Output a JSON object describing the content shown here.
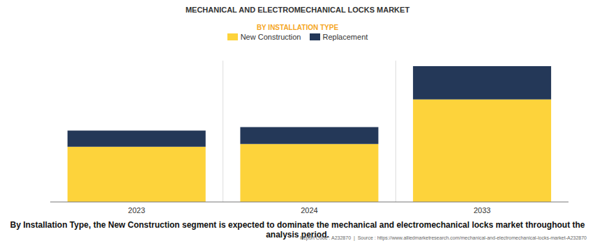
{
  "chart_data": {
    "type": "bar",
    "title": "MECHANICAL AND ELECTROMECHANICAL LOCKS MARKET",
    "subtitle": "BY INSTALLATION TYPE",
    "categories": [
      "2023",
      "2024",
      "2033"
    ],
    "series": [
      {
        "name": "New Construction",
        "color": "#fdd33b",
        "values": [
          7.8,
          8.2,
          14.5
        ]
      },
      {
        "name": "Replacement",
        "color": "#243858",
        "values": [
          2.3,
          2.4,
          4.7
        ]
      }
    ],
    "ylim": [
      0,
      20
    ],
    "stacked": true,
    "grid": true,
    "tick_labels": "x",
    "annotations": [
      "By Installation Type, the New Construction segment is expected to dominate the mechanical and electromechanical locks market throughout the analysis period.",
      "Report Code : A232870  |  Source : https://www.alliedmarketresearch.com/mechanical-and-electromechanical-locks-market-A232870"
    ]
  }
}
